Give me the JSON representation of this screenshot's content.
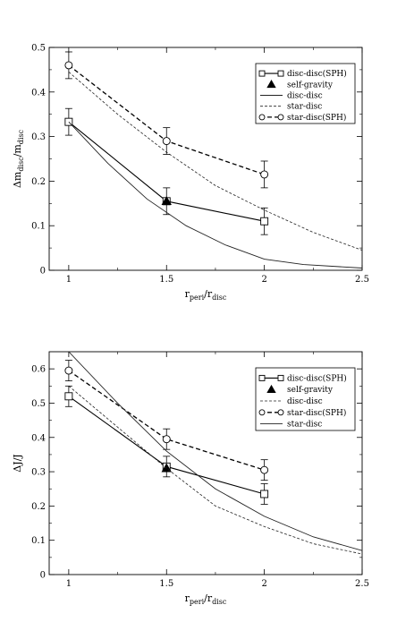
{
  "chart_data": [
    {
      "type": "line",
      "panel": "top",
      "xlabel": {
        "main": "r",
        "sub1": "peri",
        "mid": "/r",
        "sub2": "disc"
      },
      "ylabel": {
        "main": "Δm",
        "sub1": "disc",
        "mid": "/m",
        "sub2": "disc"
      },
      "xlim": [
        0.9,
        2.5
      ],
      "ylim": [
        0,
        0.5
      ],
      "xticks": [
        1,
        1.5,
        2,
        2.5
      ],
      "xtick_labels": [
        "1",
        "1.5",
        "2",
        "2.5"
      ],
      "yticks": [
        0,
        0.1,
        0.2,
        0.3,
        0.4,
        0.5
      ],
      "ytick_labels": [
        "0",
        "0.1",
        "0.2",
        "0.3",
        "0.4",
        "0.5"
      ],
      "legend_position": "top-right",
      "series": [
        {
          "name": "disc-disc(SPH)",
          "style": "solid-square",
          "x": [
            1,
            1.5,
            2
          ],
          "y": [
            0.333,
            0.155,
            0.11
          ],
          "err": [
            0.03,
            0.03,
            0.03
          ]
        },
        {
          "name": "self-gravity",
          "style": "triangle",
          "x": [
            1.5
          ],
          "y": [
            0.155
          ],
          "err": []
        },
        {
          "name": "disc-disc",
          "style": "thin-solid",
          "x": [
            1,
            1.2,
            1.4,
            1.6,
            1.8,
            2.0,
            2.2,
            2.5
          ],
          "y": [
            0.333,
            0.24,
            0.16,
            0.1,
            0.057,
            0.025,
            0.013,
            0.005
          ],
          "err": []
        },
        {
          "name": "star-disc",
          "style": "short-dash",
          "x": [
            1,
            1.25,
            1.5,
            1.75,
            2.0,
            2.25,
            2.5
          ],
          "y": [
            0.445,
            0.35,
            0.265,
            0.19,
            0.135,
            0.085,
            0.045
          ],
          "err": []
        },
        {
          "name": "star-disc(SPH)",
          "style": "dashed-circle",
          "x": [
            1,
            1.5,
            2
          ],
          "y": [
            0.46,
            0.29,
            0.215
          ],
          "err": [
            0.03,
            0.03,
            0.03
          ]
        }
      ]
    },
    {
      "type": "line",
      "panel": "bottom",
      "xlabel": {
        "main": "r",
        "sub1": "peri",
        "mid": "/r",
        "sub2": "disc"
      },
      "ylabel": {
        "main": "ΔJ/J",
        "sub1": "",
        "mid": "",
        "sub2": ""
      },
      "xlim": [
        0.9,
        2.5
      ],
      "ylim": [
        0,
        0.65
      ],
      "xticks": [
        1,
        1.5,
        2,
        2.5
      ],
      "xtick_labels": [
        "1",
        "1.5",
        "2",
        "2.5"
      ],
      "yticks": [
        0,
        0.1,
        0.2,
        0.3,
        0.4,
        0.5,
        0.6
      ],
      "ytick_labels": [
        "0",
        "0.1",
        "0.2",
        "0.3",
        "0.4",
        "0.5",
        "0.6"
      ],
      "legend_position": "top-right",
      "series": [
        {
          "name": "disc-disc(SPH)",
          "style": "solid-square",
          "x": [
            1,
            1.5,
            2
          ],
          "y": [
            0.52,
            0.315,
            0.235
          ],
          "err": [
            0.03,
            0.03,
            0.03
          ]
        },
        {
          "name": "self-gravity",
          "style": "triangle",
          "x": [
            1.5
          ],
          "y": [
            0.31
          ],
          "err": []
        },
        {
          "name": "disc-disc",
          "style": "short-dash",
          "x": [
            1,
            1.25,
            1.5,
            1.75,
            2.0,
            2.25,
            2.5
          ],
          "y": [
            0.55,
            0.43,
            0.31,
            0.2,
            0.14,
            0.09,
            0.06
          ],
          "err": []
        },
        {
          "name": "star-disc(SPH)",
          "style": "dashed-circle",
          "x": [
            1,
            1.5,
            2
          ],
          "y": [
            0.595,
            0.395,
            0.305
          ],
          "err": [
            0.03,
            0.03,
            0.03
          ]
        },
        {
          "name": "star-disc",
          "style": "thin-solid",
          "x": [
            1,
            1.25,
            1.5,
            1.75,
            2.0,
            2.25,
            2.5
          ],
          "y": [
            0.65,
            0.5,
            0.36,
            0.25,
            0.17,
            0.11,
            0.07
          ],
          "err": []
        }
      ]
    }
  ]
}
